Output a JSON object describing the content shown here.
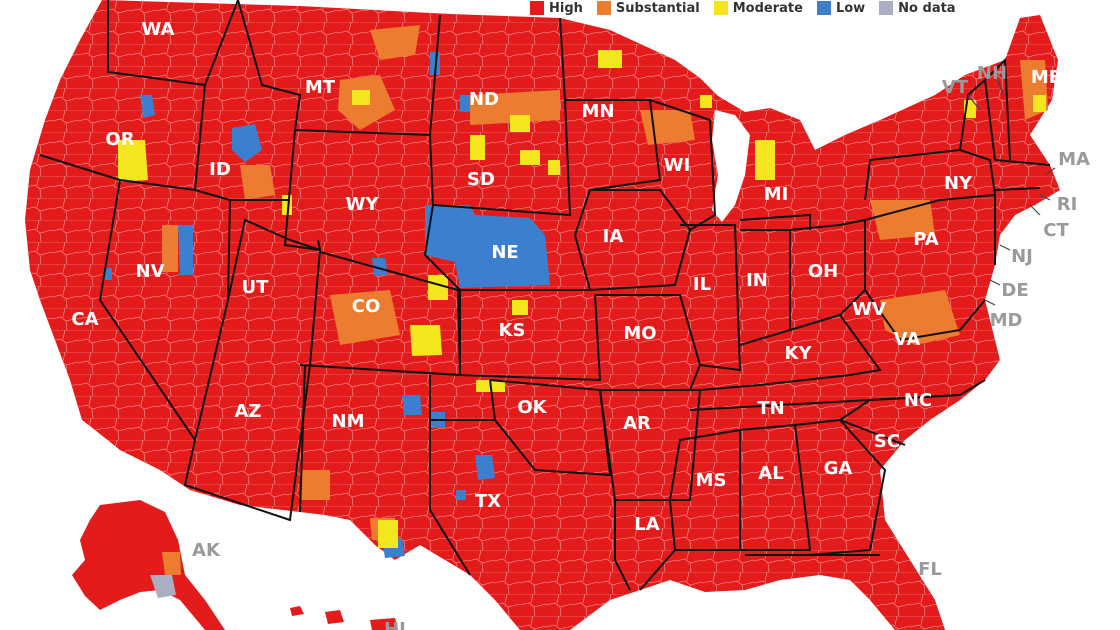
{
  "legend": {
    "items": [
      {
        "label": "High",
        "color": "#e31b1b"
      },
      {
        "label": "Substantial",
        "color": "#ec7c30"
      },
      {
        "label": "Moderate",
        "color": "#f4e61c"
      },
      {
        "label": "Low",
        "color": "#3d7fcf"
      },
      {
        "label": "No data",
        "color": "#a9aec0"
      }
    ]
  },
  "colors": {
    "high": "#e31b1b",
    "substantial": "#ec7c30",
    "moderate": "#f4e61c",
    "low": "#3d7fcf",
    "no_data": "#a9aec0",
    "county_lines": "#f6a0a0",
    "state_lines": "#111111"
  },
  "state_labels": {
    "WA": "WA",
    "OR": "OR",
    "CA": "CA",
    "ID": "ID",
    "NV": "NV",
    "MT": "MT",
    "WY": "WY",
    "UT": "UT",
    "AZ": "AZ",
    "CO": "CO",
    "NM": "NM",
    "ND": "ND",
    "SD": "SD",
    "NE": "NE",
    "KS": "KS",
    "OK": "OK",
    "TX": "TX",
    "MN": "MN",
    "IA": "IA",
    "MO": "MO",
    "AR": "AR",
    "LA": "LA",
    "WI": "WI",
    "IL": "IL",
    "MI": "MI",
    "IN": "IN",
    "OH": "OH",
    "KY": "KY",
    "TN": "TN",
    "MS": "MS",
    "AL": "AL",
    "GA": "GA",
    "FL": "FL",
    "SC": "SC",
    "NC": "NC",
    "VA": "VA",
    "WV": "WV",
    "PA": "PA",
    "NY": "NY",
    "VT": "VT",
    "NH": "NH",
    "ME": "ME",
    "MA": "MA",
    "RI": "RI",
    "CT": "CT",
    "NJ": "NJ",
    "DE": "DE",
    "MD": "MD",
    "AK": "AK",
    "HI": "HI"
  }
}
